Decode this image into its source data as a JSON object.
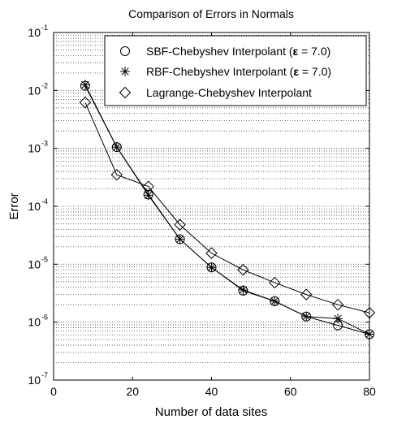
{
  "chart_data": {
    "type": "line",
    "title": "Comparison of Errors in Normals",
    "xlabel": "Number of data sites",
    "ylabel": "Error",
    "xlim": [
      0,
      80
    ],
    "ylim": [
      1e-07,
      0.1
    ],
    "yscale": "log",
    "grid": "y-minor dotted",
    "legend_position": "top-right",
    "x_ticks": [
      "0",
      "20",
      "40",
      "60",
      "80"
    ],
    "y_ticks": [
      {
        "base": "10",
        "exp": "-7"
      },
      {
        "base": "10",
        "exp": "-6"
      },
      {
        "base": "10",
        "exp": "-5"
      },
      {
        "base": "10",
        "exp": "-4"
      },
      {
        "base": "10",
        "exp": "-3"
      },
      {
        "base": "10",
        "exp": "-2"
      },
      {
        "base": "10",
        "exp": "-1"
      }
    ],
    "x": [
      8,
      16,
      24,
      32,
      40,
      48,
      56,
      64,
      72,
      80
    ],
    "series": [
      {
        "name": "SBF-Chebyshev Interpolant (",
        "name_eps": "ε",
        "name_tail": " = 7.0)",
        "marker": "circle",
        "values": [
          0.012,
          0.00105,
          0.00016,
          2.7e-05,
          8.8e-06,
          3.5e-06,
          2.3e-06,
          1.25e-06,
          8.8e-07,
          6.2e-07
        ]
      },
      {
        "name": "RBF-Chebyshev Interpolant (",
        "name_eps": "ε",
        "name_tail": " = 7.0)",
        "marker": "star",
        "values": [
          0.0125,
          0.00105,
          0.000155,
          2.7e-05,
          8.8e-06,
          3.6e-06,
          2.3e-06,
          1.25e-06,
          1.15e-06,
          6.2e-07
        ]
      },
      {
        "name": "Lagrange-Chebyshev Interpolant",
        "marker": "diamond",
        "values": [
          0.0062,
          0.00035,
          0.00022,
          4.8e-05,
          1.55e-05,
          8e-06,
          4.8e-06,
          3e-06,
          2e-06,
          1.45e-06
        ]
      }
    ]
  }
}
